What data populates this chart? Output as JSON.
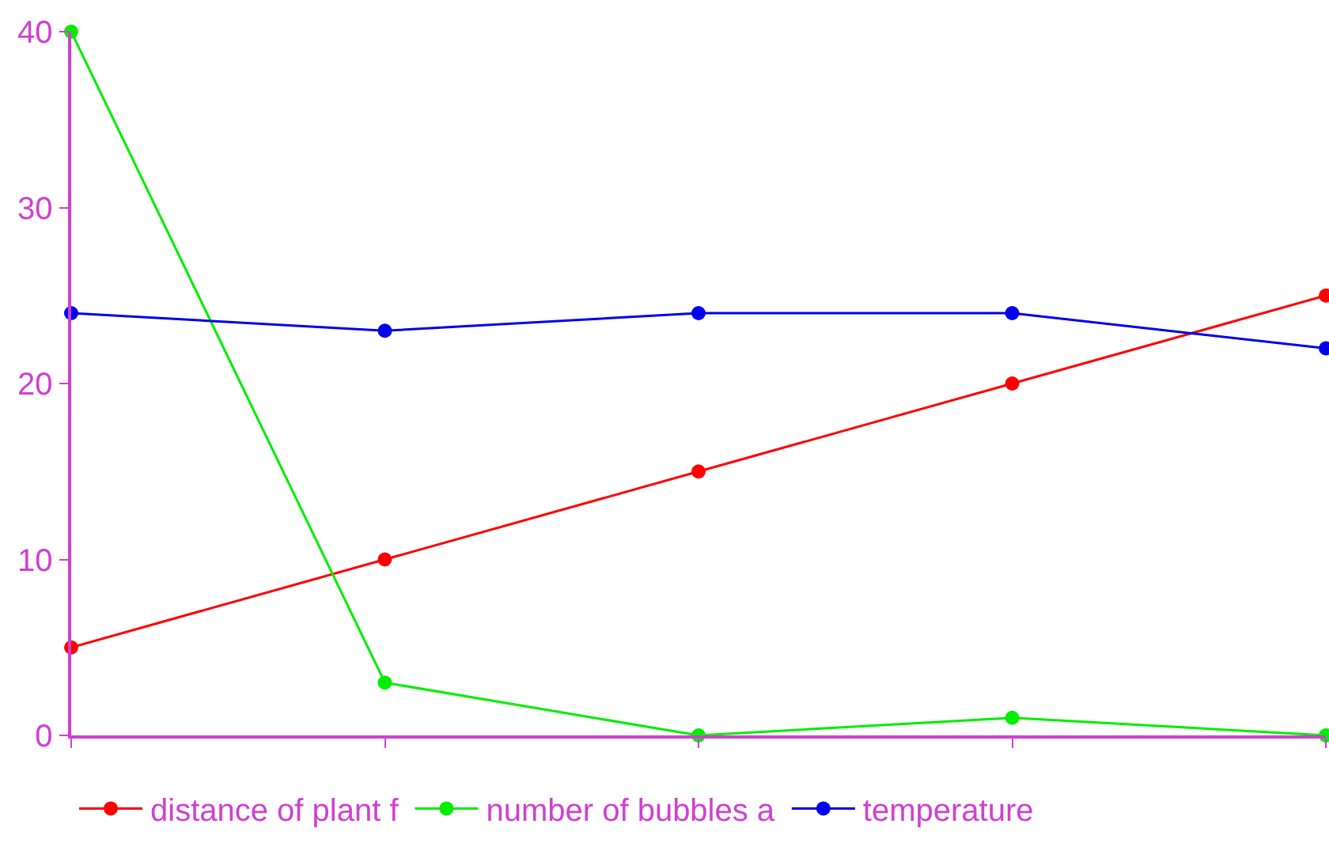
{
  "chart_data": {
    "type": "line",
    "categories": [
      null,
      null,
      null,
      null,
      null
    ],
    "series": [
      {
        "name": "distance of plant f",
        "color": "#ff0000",
        "values": [
          5,
          10,
          15,
          20,
          25
        ]
      },
      {
        "name": "number of bubbles a",
        "color": "#00ee00",
        "values": [
          40,
          3,
          0,
          1,
          0
        ]
      },
      {
        "name": "temperature",
        "color": "#0000ee",
        "values": [
          24,
          23,
          24,
          24,
          22
        ]
      }
    ],
    "ylim": [
      0,
      40
    ],
    "yticks": [
      0,
      10,
      20,
      30,
      40
    ],
    "tick_labels": "y",
    "grid": false,
    "legend": "bottom",
    "marker": "circle",
    "line_style": "solid"
  }
}
